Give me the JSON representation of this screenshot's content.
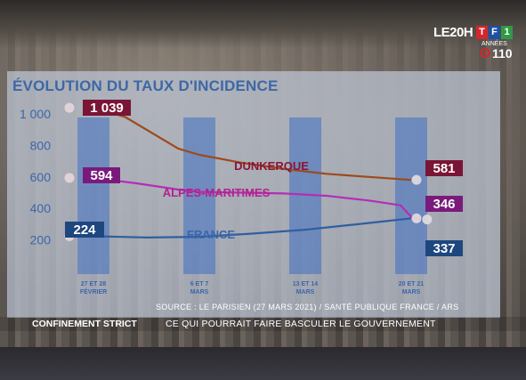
{
  "channel": {
    "program": "LE20H",
    "logo_letters": [
      "T",
      "F",
      "1"
    ],
    "logo_letter_colors": [
      "#d3272c",
      "#1f4fa3",
      "#2f9a45"
    ],
    "anniversary": "110",
    "anniversary_label": "ANNÉES"
  },
  "footer": {
    "source": "SOURCE : LE PARISIEN (27 MARS 2021) / SANTÉ PUBLIQUE FRANCE / ARS",
    "ticker_label": "CONFINEMENT STRICT",
    "ticker_text": "CE QUI POURRAIT FAIRE BASCULER LE GOUVERNEMENT"
  },
  "chart_data": {
    "type": "line",
    "title": "ÉVOLUTION DU TAUX D'INCIDENCE",
    "xlabel": "",
    "ylabel": "",
    "ylim": [
      0,
      1100
    ],
    "yticks": [
      200,
      400,
      600,
      800,
      1000
    ],
    "ytick_labels": [
      "200",
      "400",
      "600",
      "800",
      "1 000"
    ],
    "grid": false,
    "x_range": [
      0,
      3
    ],
    "categories": [
      {
        "x": 0,
        "line1": "27 ET 28",
        "line2": "FÉVRIER"
      },
      {
        "x": 1,
        "line1": "6 ET 7",
        "line2": "MARS"
      },
      {
        "x": 2,
        "line1": "13 ET 14",
        "line2": "MARS"
      },
      {
        "x": 3,
        "line1": "20 ET 21",
        "line2": "MARS"
      }
    ],
    "series": [
      {
        "name": "DUNKERQUE",
        "color": "#9c4a1c",
        "label_color": "#8b1538",
        "x": [
          0,
          0.3,
          0.55,
          0.8,
          1.0,
          1.4,
          1.8,
          2.2,
          2.6,
          3.0
        ],
        "values": [
          1039,
          980,
          880,
          780,
          740,
          690,
          650,
          620,
          600,
          581
        ],
        "start_label": "1 039",
        "end_label": "581",
        "start_box_color": "#7a1535",
        "end_box_color": "#7a1535"
      },
      {
        "name": "ALPES-MARITIMES",
        "color": "#b32eb5",
        "label_color": "#b3228e",
        "x": [
          0,
          0.4,
          0.8,
          1.0,
          1.4,
          1.8,
          2.2,
          2.6,
          2.9,
          3.0,
          3.1
        ],
        "values": [
          594,
          560,
          520,
          505,
          500,
          495,
          480,
          450,
          420,
          346,
          330
        ],
        "start_label": "594",
        "end_label": "346",
        "start_box_color": "#7a1a7c",
        "end_box_color": "#7a1a7c"
      },
      {
        "name": "FRANCE",
        "color": "#2f5fa0",
        "label_color": "#3a66aa",
        "x": [
          0,
          0.5,
          1.0,
          1.5,
          2.0,
          2.5,
          3.0
        ],
        "values": [
          224,
          215,
          220,
          240,
          265,
          300,
          337
        ],
        "start_label": "224",
        "end_label": "337",
        "start_box_color": "#1d477e",
        "end_box_color": "#1d477e"
      }
    ]
  }
}
